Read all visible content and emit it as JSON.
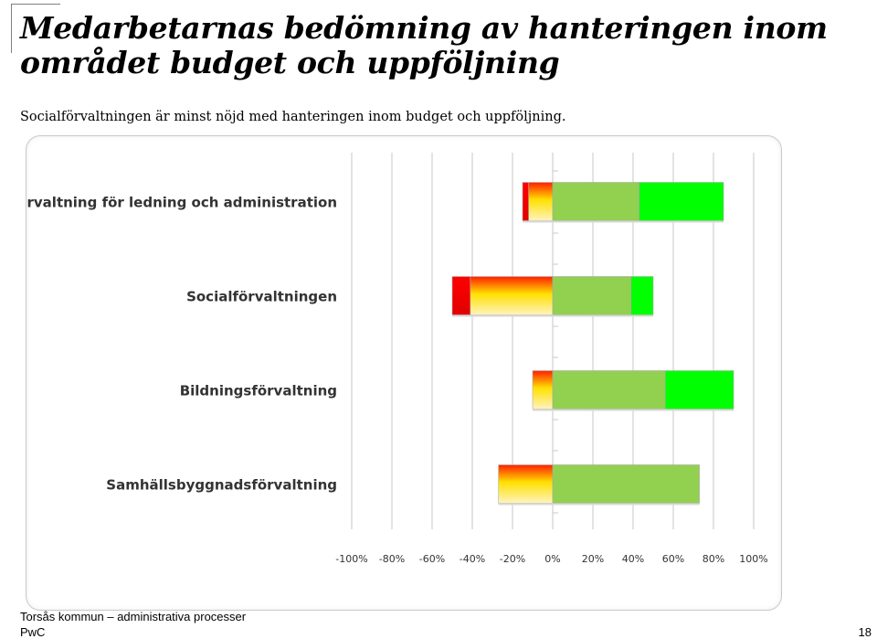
{
  "slide": {
    "title": "Medarbetarnas bedömning av hanteringen inom området budget och uppföljning",
    "subtitle": "Socialförvaltningen är minst nöjd med hanteringen inom budget och uppföljning.",
    "footer_org": "Torsås kommun – administrativa processer",
    "footer_brand": "PwC",
    "page_number": "18"
  },
  "colors": {
    "very_negative": "#ff0000",
    "negative_top": "#ff2000",
    "negative_mid": "#ffe000",
    "negative_bottom": "#fff3c0",
    "positive": "#92d050",
    "very_positive": "#00ff00",
    "grid": "#d0d0d0"
  },
  "chart_data": {
    "type": "bar",
    "orientation": "horizontal",
    "stacked": "diverging",
    "title": "",
    "xlabel": "",
    "ylabel": "",
    "xlim": [
      -100,
      100
    ],
    "x_ticks": [
      -100,
      -80,
      -60,
      -40,
      -20,
      0,
      20,
      40,
      60,
      80,
      100
    ],
    "tick_labels": [
      "-100%",
      "-80%",
      "-60%",
      "-40%",
      "-20%",
      "0%",
      "20%",
      "40%",
      "60%",
      "80%",
      "100%"
    ],
    "grid": true,
    "legend": "none",
    "categories": [
      "Förvaltning för ledning och administration",
      "Socialförvaltningen",
      "Bildningsförvaltning",
      "Samhällsbyggnadsförvaltning"
    ],
    "series": [
      {
        "name": "very_negative",
        "values": [
          -3,
          -9,
          0,
          0
        ]
      },
      {
        "name": "negative",
        "values": [
          -12,
          -41,
          -10,
          -27
        ]
      },
      {
        "name": "positive",
        "values": [
          43,
          39,
          56,
          73
        ]
      },
      {
        "name": "very_positive",
        "values": [
          42,
          11,
          34,
          0
        ]
      }
    ]
  }
}
